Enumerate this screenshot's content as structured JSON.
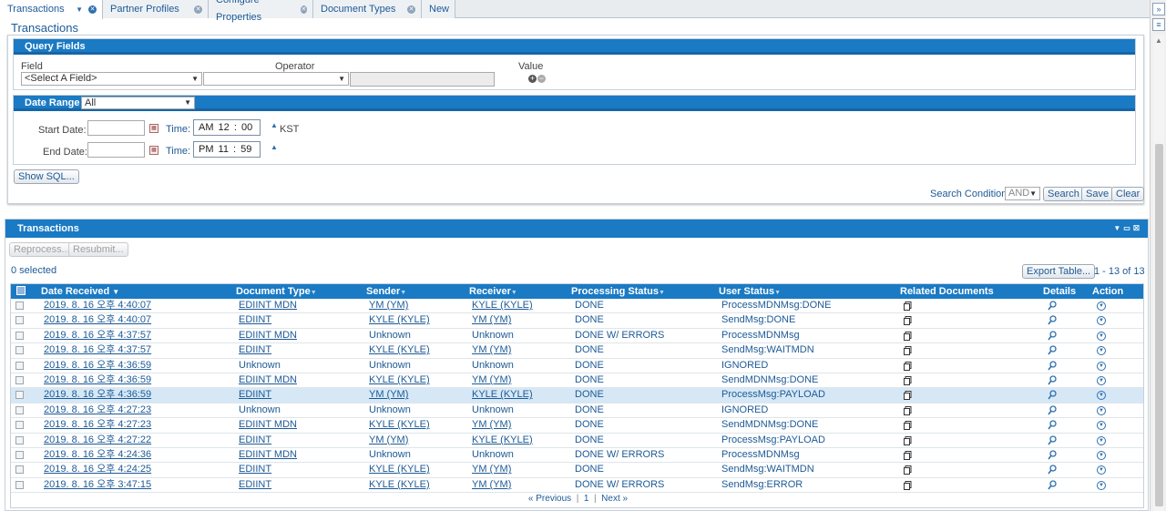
{
  "tabs": [
    {
      "label": "Transactions",
      "active": true
    },
    {
      "label": "Partner Profiles"
    },
    {
      "label": "Configure Properties"
    },
    {
      "label": "Document Types"
    },
    {
      "label": "New"
    }
  ],
  "page_title": "Transactions",
  "query": {
    "header": "Query Fields",
    "field_label": "Field",
    "operator_label": "Operator",
    "value_label": "Value",
    "field_select": "<Select A Field>",
    "operator_select": "",
    "value_input": ""
  },
  "date_range": {
    "header": "Date Range",
    "range_select": "All",
    "start_label": "Start Date:",
    "end_label": "End Date:",
    "time_label": "Time:",
    "start_time": "AM 12 : 00",
    "end_time": "PM 11 : 59",
    "timezone": "KST"
  },
  "show_sql": "Show SQL...",
  "search_condition_label": "Search Condition:",
  "search_condition_value": "AND",
  "buttons": {
    "search": "Search",
    "save": "Save",
    "clear": "Clear"
  },
  "transactions": {
    "header": "Transactions",
    "reprocess": "Reprocess...",
    "resubmit": "Resubmit...",
    "selected": "0 selected",
    "export": "Export Table...",
    "range_text": "1 - 13 of 13",
    "columns": {
      "date": "Date Received",
      "doctype": "Document Type",
      "sender": "Sender",
      "receiver": "Receiver",
      "proc": "Processing Status",
      "user": "User Status",
      "related": "Related Documents",
      "details": "Details",
      "action": "Action"
    },
    "rows": [
      {
        "date": "2019. 8. 16 오후 4:40:07",
        "doctype": "EDIINT MDN",
        "sender": "YM (YM)",
        "receiver": "KYLE (KYLE)",
        "proc": "DONE",
        "user": "ProcessMDNMsg:DONE"
      },
      {
        "date": "2019. 8. 16 오후 4:40:07",
        "doctype": "EDIINT",
        "sender": "KYLE (KYLE)",
        "receiver": "YM (YM)",
        "proc": "DONE",
        "user": "SendMsg:DONE"
      },
      {
        "date": "2019. 8. 16 오후 4:37:57",
        "doctype": "EDIINT MDN",
        "sender": "Unknown",
        "receiver": "Unknown",
        "proc": "DONE W/ ERRORS",
        "user": "ProcessMDNMsg"
      },
      {
        "date": "2019. 8. 16 오후 4:37:57",
        "doctype": "EDIINT",
        "sender": "KYLE (KYLE)",
        "receiver": "YM (YM)",
        "proc": "DONE",
        "user": "SendMsg:WAITMDN"
      },
      {
        "date": "2019. 8. 16 오후 4:36:59",
        "doctype": "Unknown",
        "sender": "Unknown",
        "receiver": "Unknown",
        "proc": "DONE",
        "user": "IGNORED"
      },
      {
        "date": "2019. 8. 16 오후 4:36:59",
        "doctype": "EDIINT MDN",
        "sender": "KYLE (KYLE)",
        "receiver": "YM (YM)",
        "proc": "DONE",
        "user": "SendMDNMsg:DONE"
      },
      {
        "date": "2019. 8. 16 오후 4:36:59",
        "doctype": "EDIINT",
        "sender": "YM (YM)",
        "receiver": "KYLE (KYLE)",
        "proc": "DONE",
        "user": "ProcessMsg:PAYLOAD"
      },
      {
        "date": "2019. 8. 16 오후 4:27:23",
        "doctype": "Unknown",
        "sender": "Unknown",
        "receiver": "Unknown",
        "proc": "DONE",
        "user": "IGNORED"
      },
      {
        "date": "2019. 8. 16 오후 4:27:23",
        "doctype": "EDIINT MDN",
        "sender": "KYLE (KYLE)",
        "receiver": "YM (YM)",
        "proc": "DONE",
        "user": "SendMDNMsg:DONE"
      },
      {
        "date": "2019. 8. 16 오후 4:27:22",
        "doctype": "EDIINT",
        "sender": "YM (YM)",
        "receiver": "KYLE (KYLE)",
        "proc": "DONE",
        "user": "ProcessMsg:PAYLOAD"
      },
      {
        "date": "2019. 8. 16 오후 4:24:36",
        "doctype": "EDIINT MDN",
        "sender": "Unknown",
        "receiver": "Unknown",
        "proc": "DONE W/ ERRORS",
        "user": "ProcessMDNMsg"
      },
      {
        "date": "2019. 8. 16 오후 4:24:25",
        "doctype": "EDIINT",
        "sender": "KYLE (KYLE)",
        "receiver": "YM (YM)",
        "proc": "DONE",
        "user": "SendMsg:WAITMDN"
      },
      {
        "date": "2019. 8. 16 오후 3:47:15",
        "doctype": "EDIINT",
        "sender": "KYLE (KYLE)",
        "receiver": "YM (YM)",
        "proc": "DONE W/ ERRORS",
        "user": "SendMsg:ERROR"
      }
    ],
    "pager": {
      "prev": "« Previous",
      "page": "1",
      "next": "Next »"
    }
  },
  "colors": {
    "accent": "#1a7ac4",
    "link": "#1d5a96",
    "highlight_row": "#d6e8f6"
  }
}
